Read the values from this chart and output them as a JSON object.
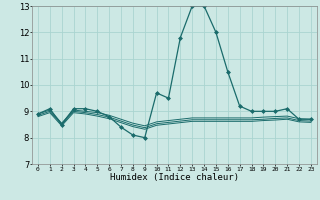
{
  "xlabel": "Humidex (Indice chaleur)",
  "background_color": "#cce8e4",
  "grid_color": "#aad4d0",
  "line_color": "#1a6b6b",
  "xlim": [
    -0.5,
    23.5
  ],
  "ylim": [
    7,
    13
  ],
  "xticks": [
    0,
    1,
    2,
    3,
    4,
    5,
    6,
    7,
    8,
    9,
    10,
    11,
    12,
    13,
    14,
    15,
    16,
    17,
    18,
    19,
    20,
    21,
    22,
    23
  ],
  "yticks": [
    7,
    8,
    9,
    10,
    11,
    12,
    13
  ],
  "series": [
    {
      "x": [
        0,
        1,
        2,
        3,
        4,
        5,
        6,
        7,
        8,
        9,
        10,
        11,
        12,
        13,
        14,
        15,
        16,
        17,
        18,
        19,
        20,
        21,
        22,
        23
      ],
      "y": [
        8.9,
        9.1,
        8.5,
        9.1,
        9.1,
        9.0,
        8.8,
        8.4,
        8.1,
        8.0,
        9.7,
        9.5,
        11.8,
        13.0,
        13.0,
        12.0,
        10.5,
        9.2,
        9.0,
        9.0,
        9.0,
        9.1,
        8.7,
        8.7
      ],
      "marker": true
    },
    {
      "x": [
        0,
        1,
        2,
        3,
        4,
        5,
        6,
        7,
        8,
        9,
        10,
        11,
        12,
        13,
        14,
        15,
        16,
        17,
        18,
        19,
        20,
        21,
        22,
        23
      ],
      "y": [
        8.9,
        9.05,
        8.55,
        9.05,
        9.0,
        8.95,
        8.85,
        8.7,
        8.55,
        8.45,
        8.6,
        8.65,
        8.7,
        8.75,
        8.75,
        8.75,
        8.75,
        8.75,
        8.75,
        8.78,
        8.8,
        8.82,
        8.72,
        8.7
      ],
      "marker": false
    },
    {
      "x": [
        0,
        1,
        2,
        3,
        4,
        5,
        6,
        7,
        8,
        9,
        10,
        11,
        12,
        13,
        14,
        15,
        16,
        17,
        18,
        19,
        20,
        21,
        22,
        23
      ],
      "y": [
        8.85,
        9.0,
        8.5,
        9.0,
        8.95,
        8.88,
        8.78,
        8.63,
        8.48,
        8.38,
        8.53,
        8.58,
        8.63,
        8.68,
        8.68,
        8.68,
        8.68,
        8.68,
        8.68,
        8.7,
        8.73,
        8.75,
        8.65,
        8.63
      ],
      "marker": false
    },
    {
      "x": [
        0,
        1,
        2,
        3,
        4,
        5,
        6,
        7,
        8,
        9,
        10,
        11,
        12,
        13,
        14,
        15,
        16,
        17,
        18,
        19,
        20,
        21,
        22,
        23
      ],
      "y": [
        8.8,
        8.95,
        8.45,
        8.95,
        8.9,
        8.82,
        8.72,
        8.57,
        8.42,
        8.32,
        8.47,
        8.52,
        8.57,
        8.62,
        8.62,
        8.62,
        8.62,
        8.62,
        8.62,
        8.65,
        8.67,
        8.7,
        8.6,
        8.58
      ],
      "marker": false
    }
  ]
}
